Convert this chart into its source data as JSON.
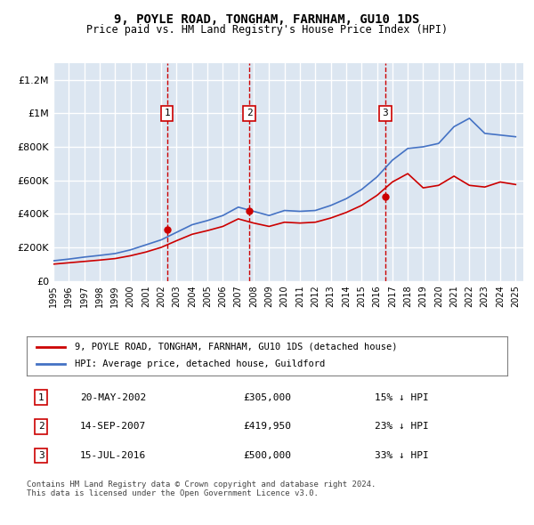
{
  "title": "9, POYLE ROAD, TONGHAM, FARNHAM, GU10 1DS",
  "subtitle": "Price paid vs. HM Land Registry's House Price Index (HPI)",
  "ylabel": "",
  "ylim": [
    0,
    1300000
  ],
  "yticks": [
    0,
    200000,
    400000,
    600000,
    800000,
    1000000,
    1200000
  ],
  "ytick_labels": [
    "£0",
    "£200K",
    "£400K",
    "£600K",
    "£800K",
    "£1M",
    "£1.2M"
  ],
  "background_color": "#dce6f1",
  "plot_bg_color": "#dce6f1",
  "grid_color": "#ffffff",
  "red_line_color": "#cc0000",
  "blue_line_color": "#4472c4",
  "sale_dates": [
    2002.38,
    2007.71,
    2016.54
  ],
  "sale_prices": [
    305000,
    419950,
    500000
  ],
  "sale_labels": [
    "1",
    "2",
    "3"
  ],
  "hpi_years": [
    1995,
    1996,
    1997,
    1998,
    1999,
    2000,
    2001,
    2002,
    2003,
    2004,
    2005,
    2006,
    2007,
    2008,
    2009,
    2010,
    2011,
    2012,
    2013,
    2014,
    2015,
    2016,
    2017,
    2018,
    2019,
    2020,
    2021,
    2022,
    2023,
    2024,
    2025
  ],
  "hpi_values": [
    120000,
    130000,
    142000,
    152000,
    163000,
    185000,
    215000,
    245000,
    290000,
    335000,
    360000,
    390000,
    440000,
    415000,
    390000,
    420000,
    415000,
    420000,
    450000,
    490000,
    545000,
    620000,
    720000,
    790000,
    800000,
    820000,
    920000,
    970000,
    880000,
    870000,
    860000
  ],
  "red_years": [
    1995,
    1996,
    1997,
    1998,
    1999,
    2000,
    2001,
    2002,
    2003,
    2004,
    2005,
    2006,
    2007,
    2008,
    2009,
    2010,
    2011,
    2012,
    2013,
    2014,
    2015,
    2016,
    2017,
    2018,
    2019,
    2020,
    2021,
    2022,
    2023,
    2024,
    2025
  ],
  "red_values": [
    100000,
    108000,
    116000,
    124000,
    133000,
    150000,
    172000,
    200000,
    240000,
    278000,
    300000,
    325000,
    370000,
    345000,
    325000,
    350000,
    345000,
    350000,
    375000,
    408000,
    450000,
    510000,
    590000,
    640000,
    555000,
    570000,
    625000,
    570000,
    560000,
    590000,
    575000
  ],
  "legend_red_label": "9, POYLE ROAD, TONGHAM, FARNHAM, GU10 1DS (detached house)",
  "legend_blue_label": "HPI: Average price, detached house, Guildford",
  "table_entries": [
    {
      "num": "1",
      "date": "20-MAY-2002",
      "price": "£305,000",
      "pct": "15% ↓ HPI"
    },
    {
      "num": "2",
      "date": "14-SEP-2007",
      "price": "£419,950",
      "pct": "23% ↓ HPI"
    },
    {
      "num": "3",
      "date": "15-JUL-2016",
      "price": "£500,000",
      "pct": "33% ↓ HPI"
    }
  ],
  "footnote": "Contains HM Land Registry data © Crown copyright and database right 2024.\nThis data is licensed under the Open Government Licence v3.0.",
  "xmin": 1995,
  "xmax": 2025.5
}
